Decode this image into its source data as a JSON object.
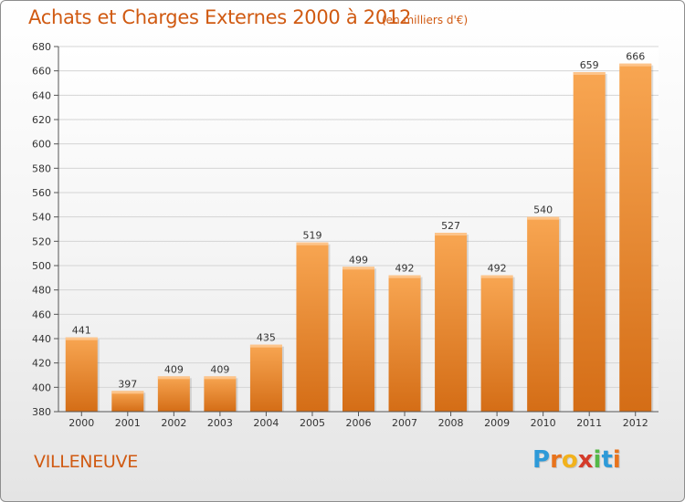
{
  "title": "Achats et Charges Externes 2000 à 2012",
  "subtitle": "(en milliers d'€)",
  "location": "VILLENEUVE",
  "logo": {
    "letters": [
      "P",
      "r",
      "o",
      "x",
      "i",
      "t",
      "i"
    ],
    "colors": [
      "#2e9ad8",
      "#e8731c",
      "#f2b21c",
      "#d43b2a",
      "#54b848",
      "#2e9ad8",
      "#e8731c"
    ]
  },
  "colors": {
    "bar_light": "#f8a652",
    "bar_dark": "#d46d16",
    "text_accent": "#d05a12",
    "grid": "#d4d4d4",
    "axis": "#555555"
  },
  "chart_data": {
    "type": "bar",
    "title": "Achats et Charges Externes 2000 à 2012",
    "subtitle": "(en milliers d'€)",
    "categories": [
      "2000",
      "2001",
      "2002",
      "2003",
      "2004",
      "2005",
      "2006",
      "2007",
      "2008",
      "2009",
      "2010",
      "2011",
      "2012"
    ],
    "values": [
      441,
      397,
      409,
      409,
      435,
      519,
      499,
      492,
      527,
      492,
      540,
      659,
      666
    ],
    "ylim": [
      380,
      680
    ],
    "yticks": [
      380,
      400,
      420,
      440,
      460,
      480,
      500,
      520,
      540,
      560,
      580,
      600,
      620,
      640,
      660,
      680
    ],
    "grid": true,
    "data_labels": true
  }
}
